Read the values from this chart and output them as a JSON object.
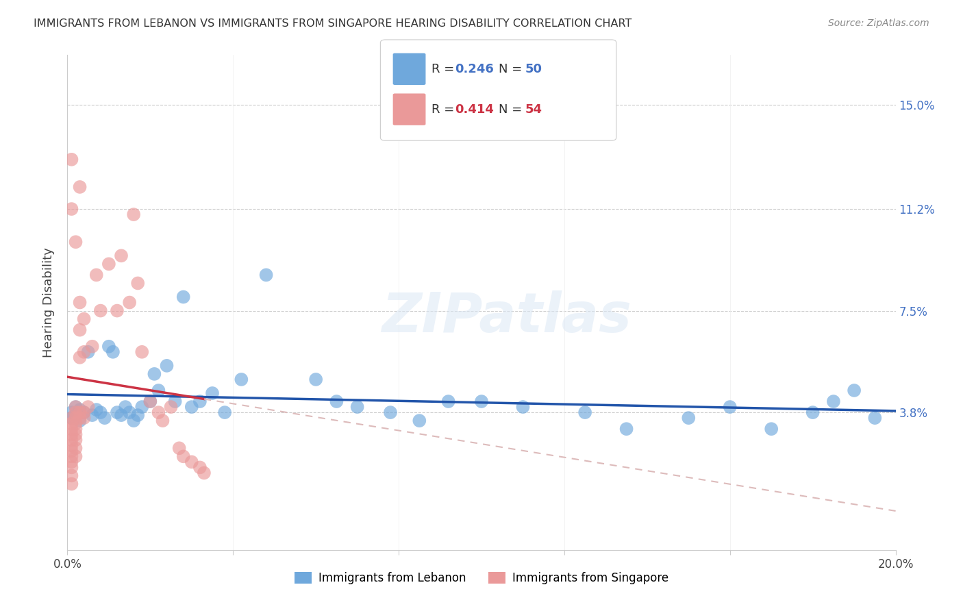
{
  "title": "IMMIGRANTS FROM LEBANON VS IMMIGRANTS FROM SINGAPORE HEARING DISABILITY CORRELATION CHART",
  "source": "Source: ZipAtlas.com",
  "ylabel": "Hearing Disability",
  "xlim": [
    0.0,
    0.2
  ],
  "ylim": [
    0.0,
    0.165
  ],
  "xtick_positions": [
    0.0,
    0.04,
    0.08,
    0.12,
    0.16,
    0.2
  ],
  "xticklabels": [
    "0.0%",
    "",
    "",
    "",
    "",
    "20.0%"
  ],
  "ytick_positions": [
    0.038,
    0.075,
    0.112,
    0.15
  ],
  "ytick_labels": [
    "3.8%",
    "7.5%",
    "11.2%",
    "15.0%"
  ],
  "lebanon_R": 0.246,
  "lebanon_N": 50,
  "singapore_R": 0.414,
  "singapore_N": 54,
  "lebanon_color": "#6fa8dc",
  "singapore_color": "#ea9999",
  "lebanon_line_color": "#2255aa",
  "singapore_line_color": "#cc3344",
  "singapore_dashed_color": "#ddbbbb",
  "watermark": "ZIPatlas",
  "lebanon_x": [
    0.001,
    0.001,
    0.002,
    0.002,
    0.003,
    0.003,
    0.004,
    0.005,
    0.006,
    0.007,
    0.008,
    0.009,
    0.01,
    0.011,
    0.012,
    0.013,
    0.014,
    0.015,
    0.016,
    0.017,
    0.018,
    0.02,
    0.021,
    0.022,
    0.024,
    0.026,
    0.028,
    0.03,
    0.032,
    0.035,
    0.038,
    0.042,
    0.048,
    0.06,
    0.065,
    0.07,
    0.078,
    0.085,
    0.092,
    0.1,
    0.11,
    0.125,
    0.135,
    0.15,
    0.16,
    0.17,
    0.18,
    0.185,
    0.19,
    0.195
  ],
  "lebanon_y": [
    0.036,
    0.038,
    0.04,
    0.037,
    0.039,
    0.035,
    0.038,
    0.06,
    0.037,
    0.039,
    0.038,
    0.036,
    0.062,
    0.06,
    0.038,
    0.037,
    0.04,
    0.038,
    0.035,
    0.037,
    0.04,
    0.042,
    0.052,
    0.046,
    0.055,
    0.042,
    0.08,
    0.04,
    0.042,
    0.045,
    0.038,
    0.05,
    0.088,
    0.05,
    0.042,
    0.04,
    0.038,
    0.035,
    0.042,
    0.042,
    0.04,
    0.038,
    0.032,
    0.036,
    0.04,
    0.032,
    0.038,
    0.042,
    0.046,
    0.036
  ],
  "singapore_x": [
    0.001,
    0.001,
    0.001,
    0.001,
    0.001,
    0.001,
    0.001,
    0.001,
    0.001,
    0.001,
    0.001,
    0.001,
    0.002,
    0.002,
    0.002,
    0.002,
    0.002,
    0.002,
    0.002,
    0.002,
    0.002,
    0.003,
    0.003,
    0.003,
    0.003,
    0.003,
    0.004,
    0.004,
    0.004,
    0.004,
    0.005,
    0.006,
    0.007,
    0.008,
    0.01,
    0.012,
    0.013,
    0.015,
    0.016,
    0.017,
    0.018,
    0.02,
    0.022,
    0.023,
    0.025,
    0.027,
    0.028,
    0.03,
    0.032,
    0.033,
    0.001,
    0.001,
    0.002,
    0.003
  ],
  "singapore_y": [
    0.036,
    0.034,
    0.032,
    0.03,
    0.028,
    0.026,
    0.024,
    0.022,
    0.02,
    0.018,
    0.015,
    0.012,
    0.038,
    0.036,
    0.034,
    0.032,
    0.03,
    0.028,
    0.025,
    0.022,
    0.04,
    0.038,
    0.036,
    0.058,
    0.068,
    0.078,
    0.038,
    0.036,
    0.06,
    0.072,
    0.04,
    0.062,
    0.088,
    0.075,
    0.092,
    0.075,
    0.095,
    0.078,
    0.11,
    0.085,
    0.06,
    0.042,
    0.038,
    0.035,
    0.04,
    0.025,
    0.022,
    0.02,
    0.018,
    0.016,
    0.112,
    0.13,
    0.1,
    0.12
  ]
}
